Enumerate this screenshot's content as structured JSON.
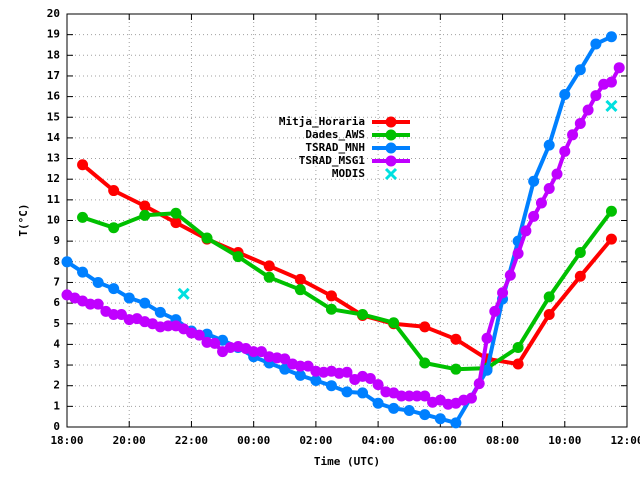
{
  "chart_data": {
    "type": "line",
    "xlabel": "Time (UTC)",
    "ylabel": "T(°C)",
    "xlim": [
      "18:00",
      "12:00"
    ],
    "xticks": [
      "18:00",
      "20:00",
      "22:00",
      "00:00",
      "02:00",
      "04:00",
      "06:00",
      "08:00",
      "10:00",
      "12:00"
    ],
    "ylim": [
      0,
      20
    ],
    "yticks": [
      0,
      1,
      2,
      3,
      4,
      5,
      6,
      7,
      8,
      9,
      10,
      11,
      12,
      13,
      14,
      15,
      16,
      17,
      18,
      19,
      20
    ],
    "grid": true,
    "legend": "top-center",
    "series": [
      {
        "name": "Mitja_Horaria",
        "color": "#ff0000",
        "marker": "circle",
        "lines": true,
        "x": [
          "18:30",
          "19:30",
          "20:30",
          "21:30",
          "22:30",
          "23:30",
          "00:30",
          "01:30",
          "02:30",
          "03:30",
          "04:30",
          "05:30",
          "06:30",
          "07:30",
          "08:30",
          "09:30",
          "10:30",
          "11:30"
        ],
        "values": [
          12.7,
          11.45,
          10.7,
          9.9,
          9.1,
          8.45,
          7.8,
          7.15,
          6.35,
          5.4,
          5.0,
          4.85,
          4.25,
          3.3,
          3.05,
          5.45,
          7.3,
          9.1
        ]
      },
      {
        "name": "Dades_AWS",
        "color": "#00c000",
        "marker": "circle",
        "lines": true,
        "x": [
          "18:30",
          "19:30",
          "20:30",
          "21:30",
          "22:30",
          "23:30",
          "00:30",
          "01:30",
          "02:30",
          "03:30",
          "04:30",
          "05:30",
          "06:30",
          "07:30",
          "08:30",
          "09:30",
          "10:30",
          "11:30"
        ],
        "values": [
          10.15,
          9.65,
          10.25,
          10.35,
          9.15,
          8.25,
          7.25,
          6.65,
          5.7,
          5.45,
          5.05,
          3.1,
          2.8,
          2.85,
          3.85,
          6.3,
          8.45,
          10.45
        ]
      },
      {
        "name": "TSRAD_MNH",
        "color": "#0080ff",
        "marker": "circle",
        "lines": true,
        "x": [
          "18:00",
          "18:30",
          "19:00",
          "19:30",
          "20:00",
          "20:30",
          "21:00",
          "21:30",
          "22:00",
          "22:30",
          "23:00",
          "23:30",
          "00:00",
          "00:30",
          "01:00",
          "01:30",
          "02:00",
          "02:30",
          "03:00",
          "03:30",
          "04:00",
          "04:30",
          "05:00",
          "05:30",
          "06:00",
          "06:30",
          "07:30",
          "08:00",
          "08:30",
          "09:00",
          "09:30",
          "10:00",
          "10:30",
          "11:00",
          "11:30"
        ],
        "values": [
          8.0,
          7.5,
          7.0,
          6.7,
          6.25,
          6.0,
          5.55,
          5.2,
          4.65,
          4.5,
          4.2,
          3.85,
          3.4,
          3.1,
          2.8,
          2.5,
          2.25,
          2.0,
          1.7,
          1.65,
          1.15,
          0.9,
          0.8,
          0.6,
          0.4,
          0.2,
          2.75,
          6.2,
          9.0,
          11.9,
          13.65,
          16.1,
          17.3,
          18.55,
          18.9
        ]
      },
      {
        "name": "TSRAD_MSG1",
        "color": "#c000ff",
        "marker": "circle",
        "lines": true,
        "x": [
          "18:00",
          "18:15",
          "18:30",
          "18:45",
          "19:00",
          "19:15",
          "19:30",
          "19:45",
          "20:00",
          "20:15",
          "20:30",
          "20:45",
          "21:00",
          "21:15",
          "21:30",
          "21:45",
          "22:00",
          "22:15",
          "22:30",
          "22:45",
          "23:00",
          "23:15",
          "23:30",
          "23:45",
          "00:00",
          "00:15",
          "00:30",
          "00:45",
          "01:00",
          "01:15",
          "01:30",
          "01:45",
          "02:00",
          "02:15",
          "02:30",
          "02:45",
          "03:00",
          "03:15",
          "03:30",
          "03:45",
          "04:00",
          "04:15",
          "04:30",
          "04:45",
          "05:00",
          "05:15",
          "05:30",
          "05:45",
          "06:00",
          "06:15",
          "06:30",
          "06:45",
          "07:00",
          "07:15",
          "07:30",
          "07:45",
          "08:00",
          "08:15",
          "08:30",
          "08:45",
          "09:00",
          "09:15",
          "09:30",
          "09:45",
          "10:00",
          "10:15",
          "10:30",
          "10:45",
          "11:00",
          "11:15",
          "11:30",
          "11:45"
        ],
        "values": [
          6.4,
          6.25,
          6.1,
          5.95,
          5.95,
          5.6,
          5.45,
          5.45,
          5.2,
          5.25,
          5.1,
          5.0,
          4.85,
          4.9,
          4.9,
          4.75,
          4.55,
          4.45,
          4.1,
          4.05,
          3.65,
          3.85,
          3.9,
          3.8,
          3.65,
          3.65,
          3.4,
          3.35,
          3.3,
          3.05,
          2.95,
          2.95,
          2.7,
          2.65,
          2.7,
          2.6,
          2.65,
          2.3,
          2.45,
          2.35,
          2.05,
          1.7,
          1.65,
          1.5,
          1.5,
          1.5,
          1.5,
          1.2,
          1.3,
          1.1,
          1.15,
          1.3,
          1.4,
          2.1,
          4.3,
          5.6,
          6.5,
          7.35,
          8.4,
          9.5,
          10.2,
          10.85,
          11.55,
          12.25,
          13.35,
          14.15,
          14.7,
          15.35,
          16.05,
          16.6,
          16.7,
          17.4
        ]
      },
      {
        "name": "MODIS",
        "color": "#00e0e0",
        "marker": "cross",
        "lines": false,
        "x": [
          "21:45",
          "11:30"
        ],
        "values": [
          6.45,
          15.55
        ]
      }
    ]
  }
}
